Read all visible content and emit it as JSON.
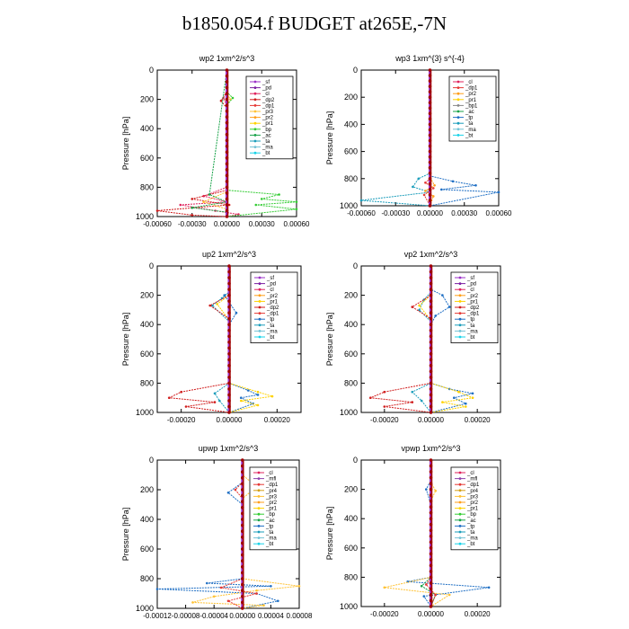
{
  "title": "b1850.054.f  BUDGET at265E,-7N",
  "colors": {
    "sf": "#9b30c8",
    "pd": "#7a1fa2",
    "cl": "#e0245e",
    "dp2": "#d01c1c",
    "dp1": "#e53935",
    "pr3": "#ffc233",
    "pr2": "#ff9f1a",
    "pr1": "#ffd200",
    "pr4": "#d4a017",
    "bp": "#33cc33",
    "ac": "#1aa34a",
    "tp": "#1f6fc4",
    "ta": "#1b9dbb",
    "ma": "#74c3d6",
    "bt": "#19d3e8",
    "mfl": "#8e44ad",
    "center": "#a00000"
  },
  "chart_data": [
    {
      "type": "line",
      "title": "wp2   1xm^2/s^3",
      "ylabel": "Pressure [hPa]",
      "ylim": [
        1000,
        0
      ],
      "xlim": [
        -0.0006,
        0.0006
      ],
      "xticks": [
        "-0.00060",
        "-0.00030",
        "0.00000",
        "0.00030",
        "0.00060"
      ],
      "yticks": [
        "0",
        "200",
        "400",
        "600",
        "800",
        "1000"
      ],
      "legend": [
        "_sf",
        "_pd",
        "_cl",
        "_dp2",
        "_dp1",
        "_pr3",
        "_pr2",
        "_pr1",
        "_bp",
        "_ac",
        "_ta",
        "_ma",
        "_bt"
      ],
      "series": [
        {
          "name": "_cl",
          "x": [
            0,
            0,
            -3e-05,
            0,
            0,
            -0.0002,
            0,
            -0.0004,
            -0.0001,
            0.0001,
            0
          ],
          "y": [
            0,
            140,
            190,
            240,
            800,
            860,
            900,
            920,
            960,
            985,
            1000
          ]
        },
        {
          "name": "_dp2",
          "x": [
            0,
            0,
            -5e-05,
            0,
            0,
            -0.0003,
            2e-05,
            -0.0006,
            -0.0003,
            0
          ],
          "y": [
            0,
            150,
            210,
            260,
            820,
            880,
            920,
            960,
            990,
            1000
          ]
        },
        {
          "name": "_pr3",
          "x": [
            0,
            0,
            3e-05,
            0,
            0,
            -0.0002,
            0,
            0
          ],
          "y": [
            0,
            160,
            200,
            240,
            830,
            900,
            950,
            1000
          ]
        },
        {
          "name": "_bp",
          "x": [
            0,
            0,
            5e-05,
            0,
            0,
            0.00045,
            0.0003,
            0.0006,
            0.00025,
            0.0006,
            0
          ],
          "y": [
            0,
            150,
            190,
            240,
            820,
            850,
            880,
            900,
            920,
            950,
            1000
          ]
        },
        {
          "name": "_ac",
          "x": [
            0,
            -0.00015,
            0,
            -0.0003,
            0,
            0
          ],
          "y": [
            0,
            850,
            900,
            940,
            970,
            1000
          ]
        }
      ]
    },
    {
      "type": "line",
      "title": "wp3   1xm^{3} s^{-4}",
      "ylabel": "Pressure [hPa]",
      "ylim": [
        1000,
        0
      ],
      "xlim": [
        -0.0006,
        0.0006
      ],
      "xticks": [
        "-0.00060",
        "-0.00030",
        "0.00000",
        "0.00030",
        "0.00060"
      ],
      "yticks": [
        "0",
        "200",
        "400",
        "600",
        "800",
        "1000"
      ],
      "legend": [
        "_cl",
        "_dp1",
        "_pr2",
        "_pr1",
        "_bp1",
        "_ac",
        "_tp",
        "_ta",
        "_ma",
        "_bt"
      ],
      "series": [
        {
          "name": "_tp",
          "x": [
            0,
            0,
            0.0002,
            0.0004,
            0.0001,
            0.0006,
            0
          ],
          "y": [
            0,
            780,
            820,
            850,
            880,
            900,
            1000
          ]
        },
        {
          "name": "_ta",
          "x": [
            0,
            0,
            -0.0001,
            -0.00015,
            0,
            -0.0006,
            0
          ],
          "y": [
            0,
            760,
            800,
            860,
            900,
            960,
            1000
          ]
        },
        {
          "name": "_dp1",
          "x": [
            0,
            0,
            -4e-05,
            3e-05,
            -5e-05,
            0
          ],
          "y": [
            0,
            800,
            830,
            870,
            920,
            1000
          ]
        },
        {
          "name": "_pr2",
          "x": [
            0,
            0,
            4e-05,
            -4e-05,
            3e-05,
            0
          ],
          "y": [
            0,
            790,
            850,
            890,
            930,
            1000
          ]
        }
      ]
    },
    {
      "type": "line",
      "title": "up2   1xm^2/s^3",
      "ylabel": "Pressure [hPa]",
      "ylim": [
        1000,
        0
      ],
      "xlim": [
        -0.0003,
        0.0003
      ],
      "xticks": [
        "-0.00020",
        "0.00000",
        "0.00020"
      ],
      "yticks": [
        "0",
        "200",
        "400",
        "600",
        "800",
        "1000"
      ],
      "legend": [
        "_sf",
        "_pd",
        "_cl",
        "_pr2",
        "_pr1",
        "_dp2",
        "_dp1",
        "_tp",
        "_ta",
        "_ma",
        "_bt"
      ],
      "series": [
        {
          "name": "_tp",
          "x": [
            0,
            0,
            -2e-05,
            3e-05,
            0,
            0,
            8e-05,
            0.00012,
            5e-05,
            0.0001,
            0
          ],
          "y": [
            0,
            180,
            200,
            320,
            400,
            800,
            850,
            880,
            900,
            940,
            1000
          ]
        },
        {
          "name": "_ta",
          "x": [
            0,
            0,
            -3e-05,
            -7e-05,
            0,
            0,
            -6e-05,
            -4e-05,
            0
          ],
          "y": [
            0,
            180,
            220,
            270,
            380,
            800,
            870,
            920,
            1000
          ]
        },
        {
          "name": "_pr1",
          "x": [
            0,
            0,
            -5e-05,
            0,
            0,
            0.00012,
            0.00018,
            5e-05,
            0.00012,
            0
          ],
          "y": [
            0,
            200,
            260,
            370,
            800,
            860,
            890,
            920,
            950,
            1000
          ]
        },
        {
          "name": "_dp2",
          "x": [
            0,
            0,
            -8e-05,
            0,
            0,
            -0.0002,
            -0.00025,
            -6e-05,
            -0.00018,
            0
          ],
          "y": [
            0,
            200,
            270,
            360,
            800,
            860,
            900,
            930,
            960,
            1000
          ]
        }
      ]
    },
    {
      "type": "line",
      "title": "vp2   1xm^2/s^3",
      "ylabel": "Pressure [hPa]",
      "ylim": [
        1000,
        0
      ],
      "xlim": [
        -0.0003,
        0.0003
      ],
      "xticks": [
        "-0.00020",
        "0.00000",
        "0.00020"
      ],
      "yticks": [
        "0",
        "200",
        "400",
        "600",
        "800",
        "1000"
      ],
      "legend": [
        "_sf",
        "_pd",
        "_cl",
        "_pr2",
        "_pr1",
        "_dp2",
        "_dp1",
        "_tp",
        "_ta",
        "_ma",
        "_bt"
      ],
      "series": [
        {
          "name": "_tp",
          "x": [
            0,
            0,
            5e-05,
            8e-05,
            2e-05,
            0,
            0,
            8e-05,
            0.00018,
            0.0001,
            0.00015,
            0
          ],
          "y": [
            0,
            160,
            200,
            280,
            340,
            400,
            800,
            840,
            870,
            900,
            940,
            1000
          ]
        },
        {
          "name": "_ta",
          "x": [
            0,
            0,
            -3e-05,
            -5e-05,
            0,
            0,
            -8e-05,
            -4e-05,
            0
          ],
          "y": [
            0,
            180,
            230,
            300,
            380,
            800,
            860,
            920,
            1000
          ]
        },
        {
          "name": "_pr1",
          "x": [
            0,
            0,
            -5e-05,
            0,
            0,
            0.00012,
            0.00018,
            5e-05,
            0.00015,
            0
          ],
          "y": [
            0,
            200,
            270,
            370,
            800,
            860,
            900,
            930,
            960,
            1000
          ]
        },
        {
          "name": "_dp2",
          "x": [
            0,
            0,
            -8e-05,
            0,
            0,
            -0.0002,
            -0.00026,
            -8e-05,
            -0.0002,
            0
          ],
          "y": [
            0,
            200,
            280,
            360,
            800,
            860,
            900,
            930,
            960,
            1000
          ]
        }
      ]
    },
    {
      "type": "line",
      "title": "upwp   1xm^2/s^3",
      "ylabel": "Pressure [hPa]",
      "ylim": [
        1000,
        0
      ],
      "xlim": [
        -0.00012,
        8e-05
      ],
      "xticks": [
        "-0.00012",
        "-0.00008",
        "-0.00004",
        "0.00000",
        "0.00004",
        "0.00008"
      ],
      "yticks": [
        "0",
        "200",
        "400",
        "600",
        "800",
        "1000"
      ],
      "legend": [
        "_cl",
        "_mfl",
        "_dp1",
        "_pr4",
        "_pr3",
        "_pr2",
        "_pr1",
        "_bp",
        "_ac",
        "_tp",
        "_ta",
        "_ma",
        "_bt"
      ],
      "series": [
        {
          "name": "_tp",
          "x": [
            0,
            0,
            -2e-05,
            0,
            0,
            -5e-05,
            4e-05,
            -0.00012,
            2e-05,
            5e-05,
            0
          ],
          "y": [
            0,
            150,
            220,
            300,
            800,
            830,
            850,
            870,
            900,
            950,
            1000
          ]
        },
        {
          "name": "_pr3",
          "x": [
            0,
            0,
            2e-05,
            0,
            0,
            8e-05,
            2e-05,
            -4e-05,
            -7e-05,
            3e-05,
            0
          ],
          "y": [
            0,
            100,
            180,
            260,
            800,
            850,
            880,
            920,
            960,
            980,
            1000
          ]
        },
        {
          "name": "_dp1",
          "x": [
            0,
            0,
            -1e-05,
            0,
            0,
            -3e-05,
            2e-05,
            -2e-05,
            0
          ],
          "y": [
            0,
            150,
            200,
            260,
            800,
            860,
            900,
            950,
            1000
          ]
        }
      ]
    },
    {
      "type": "line",
      "title": "vpwp   1xm^2/s^3",
      "ylabel": "Pressure [hPa]",
      "ylim": [
        1000,
        0
      ],
      "xlim": [
        -0.0003,
        0.0003
      ],
      "xticks": [
        "-0.00020",
        "0.00000",
        "0.00020"
      ],
      "yticks": [
        "0",
        "200",
        "400",
        "600",
        "800",
        "1000"
      ],
      "legend": [
        "_cl",
        "_mfl",
        "_dp1",
        "_pr4",
        "_pr3",
        "_pr2",
        "_pr1",
        "_bp",
        "_ac",
        "_tp",
        "_ta",
        "_ma",
        "_bt"
      ],
      "series": [
        {
          "name": "_tp",
          "x": [
            0,
            0,
            -2e-05,
            0,
            0,
            -0.0001,
            0.00025,
            -3e-05,
            0
          ],
          "y": [
            0,
            140,
            200,
            300,
            800,
            830,
            870,
            930,
            1000
          ]
        },
        {
          "name": "_pr3",
          "x": [
            0,
            0,
            2e-05,
            0,
            0,
            -0.0002,
            8e-05,
            0
          ],
          "y": [
            0,
            150,
            210,
            280,
            800,
            870,
            920,
            1000
          ]
        },
        {
          "name": "_ac",
          "x": [
            0,
            0,
            -4e-05,
            2e-05,
            0
          ],
          "y": [
            0,
            800,
            860,
            920,
            1000
          ]
        },
        {
          "name": "_dp1",
          "x": [
            0,
            0,
            -2e-05,
            2e-05,
            0
          ],
          "y": [
            0,
            800,
            850,
            920,
            1000
          ]
        }
      ]
    }
  ]
}
